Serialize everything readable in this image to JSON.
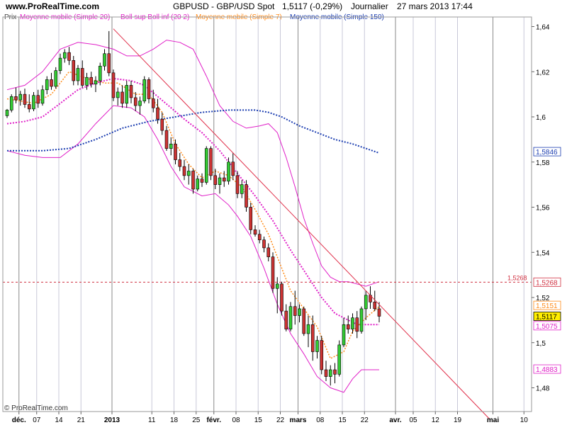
{
  "header": {
    "site": "www.ProRealTime.com",
    "instrument": "GBPUSD - GBP/USD Spot",
    "quote": "1,5117 (-0,29%)",
    "period": "Journalier",
    "datetime": "27 mars 2013 17:44"
  },
  "legend": {
    "prix": "Prix",
    "ma20": "Moyenne mobile (Simple 20)",
    "boll": "Boll sup Boll inf (20 2)",
    "ma7": "Moyenne mobile (Simple 7)",
    "ma150": "Moyenne mobile (Simple 150)"
  },
  "copyright": "© ProRealTime.com",
  "colors": {
    "background": "#ffffff",
    "up_candle": "#33cc33",
    "down_candle": "#cc3333",
    "wick": "#000000",
    "ma20": "#e020c8",
    "bollinger": "#e020c8",
    "ma7": "#ff8c1a",
    "ma150": "#1a3cb0",
    "trendline": "#e0304a",
    "hline": "#d03040",
    "month_line": "#8a8a8a",
    "week_line": "#c8c8d8",
    "price_badge": "#ffee00"
  },
  "chart_data": {
    "type": "candlestick",
    "title": "GBPUSD - GBP/USD Spot",
    "ylim": [
      1.467,
      1.648
    ],
    "yticks": [
      {
        "v": 1.48,
        "label": "1,48"
      },
      {
        "v": 1.5,
        "label": "1,5"
      },
      {
        "v": 1.52,
        "label": "1,52"
      },
      {
        "v": 1.54,
        "label": "1,54"
      },
      {
        "v": 1.56,
        "label": "1,56"
      },
      {
        "v": 1.58,
        "label": "1,58"
      },
      {
        "v": 1.6,
        "label": "1,6"
      },
      {
        "v": 1.62,
        "label": "1,62"
      },
      {
        "v": 1.64,
        "label": "1,64"
      }
    ],
    "xlabels": [
      {
        "label": "déc.",
        "type": "month",
        "i": 3
      },
      {
        "label": "07",
        "type": "week",
        "i": 7
      },
      {
        "label": "14",
        "type": "week",
        "i": 12
      },
      {
        "label": "21",
        "type": "week",
        "i": 17
      },
      {
        "label": "2013",
        "type": "year",
        "i": 24
      },
      {
        "label": "11",
        "type": "week",
        "i": 33
      },
      {
        "label": "18",
        "type": "week",
        "i": 38
      },
      {
        "label": "25",
        "type": "week",
        "i": 43
      },
      {
        "label": "févr.",
        "type": "month",
        "i": 47
      },
      {
        "label": "08",
        "type": "week",
        "i": 52
      },
      {
        "label": "15",
        "type": "week",
        "i": 57
      },
      {
        "label": "22",
        "type": "week",
        "i": 62
      },
      {
        "label": "mars",
        "type": "month",
        "i": 66
      },
      {
        "label": "08",
        "type": "week",
        "i": 71
      },
      {
        "label": "15",
        "type": "week",
        "i": 76
      },
      {
        "label": "22",
        "type": "week",
        "i": 81
      },
      {
        "label": "avr.",
        "type": "month",
        "i": 88
      },
      {
        "label": "05",
        "type": "week",
        "i": 92
      },
      {
        "label": "12",
        "type": "week",
        "i": 97
      },
      {
        "label": "19",
        "type": "week",
        "i": 102
      },
      {
        "label": "mai",
        "type": "month",
        "i": 110
      },
      {
        "label": "10",
        "type": "week",
        "i": 117
      }
    ],
    "candles": [
      [
        1.6005,
        1.6035,
        1.5995,
        1.603
      ],
      [
        1.603,
        1.61,
        1.602,
        1.609
      ],
      [
        1.609,
        1.613,
        1.606,
        1.6075
      ],
      [
        1.6075,
        1.6115,
        1.605,
        1.61
      ],
      [
        1.61,
        1.6125,
        1.604,
        1.6055
      ],
      [
        1.6055,
        1.61,
        1.602,
        1.6035
      ],
      [
        1.6035,
        1.611,
        1.6025,
        1.6095
      ],
      [
        1.6095,
        1.612,
        1.604,
        1.606
      ],
      [
        1.606,
        1.614,
        1.605,
        1.612
      ],
      [
        1.612,
        1.618,
        1.61,
        1.6165
      ],
      [
        1.6165,
        1.6195,
        1.612,
        1.6135
      ],
      [
        1.6135,
        1.622,
        1.6125,
        1.6205
      ],
      [
        1.6205,
        1.628,
        1.619,
        1.626
      ],
      [
        1.626,
        1.63,
        1.624,
        1.6285
      ],
      [
        1.6285,
        1.631,
        1.623,
        1.625
      ],
      [
        1.625,
        1.627,
        1.614,
        1.616
      ],
      [
        1.616,
        1.623,
        1.614,
        1.6215
      ],
      [
        1.6215,
        1.625,
        1.613,
        1.614
      ],
      [
        1.614,
        1.6195,
        1.612,
        1.6175
      ],
      [
        1.6175,
        1.62,
        1.613,
        1.6145
      ],
      [
        1.6145,
        1.618,
        1.611,
        1.616
      ],
      [
        1.616,
        1.624,
        1.614,
        1.6225
      ],
      [
        1.6225,
        1.63,
        1.6205,
        1.628
      ],
      [
        1.628,
        1.638,
        1.618,
        1.6195
      ],
      [
        1.6195,
        1.621,
        1.607,
        1.6085
      ],
      [
        1.6085,
        1.613,
        1.605,
        1.611
      ],
      [
        1.611,
        1.614,
        1.604,
        1.606
      ],
      [
        1.606,
        1.616,
        1.604,
        1.614
      ],
      [
        1.614,
        1.616,
        1.606,
        1.6085
      ],
      [
        1.6085,
        1.611,
        1.6025,
        1.605
      ],
      [
        1.605,
        1.609,
        1.601,
        1.607
      ],
      [
        1.607,
        1.618,
        1.606,
        1.6165
      ],
      [
        1.6165,
        1.6175,
        1.606,
        1.608
      ],
      [
        1.608,
        1.612,
        1.602,
        1.604
      ],
      [
        1.604,
        1.608,
        1.597,
        1.599
      ],
      [
        1.599,
        1.602,
        1.592,
        1.594
      ],
      [
        1.594,
        1.596,
        1.585,
        1.586
      ],
      [
        1.586,
        1.591,
        1.583,
        1.588
      ],
      [
        1.588,
        1.59,
        1.579,
        1.581
      ],
      [
        1.581,
        1.584,
        1.576,
        1.578
      ],
      [
        1.578,
        1.581,
        1.572,
        1.574
      ],
      [
        1.574,
        1.579,
        1.57,
        1.576
      ],
      [
        1.576,
        1.577,
        1.566,
        1.568
      ],
      [
        1.568,
        1.574,
        1.567,
        1.5725
      ],
      [
        1.5725,
        1.575,
        1.569,
        1.571
      ],
      [
        1.571,
        1.587,
        1.57,
        1.586
      ],
      [
        1.586,
        1.587,
        1.572,
        1.574
      ],
      [
        1.574,
        1.577,
        1.568,
        1.57
      ],
      [
        1.57,
        1.575,
        1.566,
        1.573
      ],
      [
        1.573,
        1.576,
        1.569,
        1.5715
      ],
      [
        1.5715,
        1.582,
        1.57,
        1.58
      ],
      [
        1.58,
        1.584,
        1.572,
        1.574
      ],
      [
        1.574,
        1.576,
        1.564,
        1.566
      ],
      [
        1.566,
        1.572,
        1.564,
        1.57
      ],
      [
        1.57,
        1.572,
        1.558,
        1.56
      ],
      [
        1.56,
        1.562,
        1.548,
        1.55
      ],
      [
        1.55,
        1.552,
        1.547,
        1.548
      ],
      [
        1.548,
        1.55,
        1.544,
        1.5455
      ],
      [
        1.5455,
        1.547,
        1.54,
        1.542
      ],
      [
        1.542,
        1.544,
        1.536,
        1.538
      ],
      [
        1.538,
        1.54,
        1.522,
        1.524
      ],
      [
        1.524,
        1.529,
        1.513,
        1.526
      ],
      [
        1.526,
        1.527,
        1.512,
        1.514
      ],
      [
        1.514,
        1.517,
        1.505,
        1.506
      ],
      [
        1.506,
        1.518,
        1.505,
        1.516
      ],
      [
        1.516,
        1.523,
        1.508,
        1.512
      ],
      [
        1.512,
        1.517,
        1.509,
        1.515
      ],
      [
        1.515,
        1.516,
        1.503,
        1.504
      ],
      [
        1.504,
        1.512,
        1.498,
        1.508
      ],
      [
        1.508,
        1.512,
        1.492,
        1.496
      ],
      [
        1.496,
        1.503,
        1.493,
        1.501
      ],
      [
        1.501,
        1.503,
        1.486,
        1.488
      ],
      [
        1.488,
        1.492,
        1.483,
        1.485
      ],
      [
        1.485,
        1.49,
        1.481,
        1.488
      ],
      [
        1.488,
        1.491,
        1.482,
        1.486
      ],
      [
        1.486,
        1.501,
        1.485,
        1.499
      ],
      [
        1.499,
        1.511,
        1.498,
        1.508
      ],
      [
        1.508,
        1.512,
        1.504,
        1.506
      ],
      [
        1.506,
        1.513,
        1.504,
        1.511
      ],
      [
        1.511,
        1.514,
        1.502,
        1.505
      ],
      [
        1.505,
        1.516,
        1.504,
        1.515
      ],
      [
        1.515,
        1.523,
        1.51,
        1.521
      ],
      [
        1.521,
        1.525,
        1.515,
        1.518
      ],
      [
        1.518,
        1.523,
        1.514,
        1.515
      ],
      [
        1.515,
        1.518,
        1.509,
        1.5117
      ]
    ],
    "ma7": [
      [
        0,
        1.608
      ],
      [
        6,
        1.606
      ],
      [
        10,
        1.61
      ],
      [
        14,
        1.62
      ],
      [
        18,
        1.617
      ],
      [
        22,
        1.615
      ],
      [
        25,
        1.615
      ],
      [
        29,
        1.61
      ],
      [
        32,
        1.61
      ],
      [
        35,
        1.602
      ],
      [
        38,
        1.588
      ],
      [
        41,
        1.579
      ],
      [
        44,
        1.573
      ],
      [
        47,
        1.576
      ],
      [
        50,
        1.574
      ],
      [
        53,
        1.569
      ],
      [
        56,
        1.559
      ],
      [
        59,
        1.548
      ],
      [
        62,
        1.533
      ],
      [
        64,
        1.523
      ],
      [
        67,
        1.515
      ],
      [
        70,
        1.507
      ],
      [
        73,
        1.493
      ],
      [
        76,
        1.496
      ],
      [
        78,
        1.505
      ],
      [
        81,
        1.511
      ],
      [
        84,
        1.516
      ]
    ],
    "ma20": [
      [
        0,
        1.597
      ],
      [
        4,
        1.598
      ],
      [
        8,
        1.6
      ],
      [
        12,
        1.606
      ],
      [
        16,
        1.612
      ],
      [
        20,
        1.615
      ],
      [
        24,
        1.617
      ],
      [
        28,
        1.616
      ],
      [
        31,
        1.614
      ],
      [
        34,
        1.609
      ],
      [
        37,
        1.604
      ],
      [
        40,
        1.599
      ],
      [
        44,
        1.593
      ],
      [
        48,
        1.585
      ],
      [
        52,
        1.575
      ],
      [
        56,
        1.565
      ],
      [
        60,
        1.554
      ],
      [
        64,
        1.541
      ],
      [
        68,
        1.529
      ],
      [
        71,
        1.52
      ],
      [
        74,
        1.513
      ],
      [
        77,
        1.51
      ],
      [
        79,
        1.508
      ],
      [
        84,
        1.508
      ]
    ],
    "boll_upper": [
      [
        0,
        1.612
      ],
      [
        4,
        1.614
      ],
      [
        8,
        1.62
      ],
      [
        12,
        1.63
      ],
      [
        16,
        1.633
      ],
      [
        20,
        1.632
      ],
      [
        24,
        1.63
      ],
      [
        27,
        1.627
      ],
      [
        30,
        1.627
      ],
      [
        33,
        1.63
      ],
      [
        36,
        1.634
      ],
      [
        39,
        1.633
      ],
      [
        42,
        1.63
      ],
      [
        45,
        1.618
      ],
      [
        48,
        1.605
      ],
      [
        51,
        1.598
      ],
      [
        54,
        1.595
      ],
      [
        57,
        1.596
      ],
      [
        59,
        1.597
      ],
      [
        61,
        1.593
      ],
      [
        63,
        1.582
      ],
      [
        65,
        1.569
      ],
      [
        67,
        1.555
      ],
      [
        69,
        1.544
      ],
      [
        71,
        1.534
      ],
      [
        73,
        1.529
      ],
      [
        75,
        1.527
      ],
      [
        77,
        1.527
      ],
      [
        79,
        1.526
      ],
      [
        81,
        1.525
      ],
      [
        84,
        1.527
      ]
    ],
    "boll_lower": [
      [
        0,
        1.585
      ],
      [
        4,
        1.583
      ],
      [
        8,
        1.582
      ],
      [
        12,
        1.582
      ],
      [
        16,
        1.588
      ],
      [
        20,
        1.597
      ],
      [
        24,
        1.605
      ],
      [
        28,
        1.604
      ],
      [
        31,
        1.6
      ],
      [
        34,
        1.59
      ],
      [
        37,
        1.578
      ],
      [
        40,
        1.569
      ],
      [
        44,
        1.565
      ],
      [
        47,
        1.566
      ],
      [
        50,
        1.561
      ],
      [
        52,
        1.556
      ],
      [
        55,
        1.547
      ],
      [
        58,
        1.533
      ],
      [
        61,
        1.517
      ],
      [
        64,
        1.504
      ],
      [
        67,
        1.495
      ],
      [
        70,
        1.485
      ],
      [
        73,
        1.48
      ],
      [
        76,
        1.478
      ],
      [
        78,
        1.484
      ],
      [
        80,
        1.488
      ],
      [
        84,
        1.488
      ]
    ],
    "ma150": [
      [
        0,
        1.585
      ],
      [
        8,
        1.585
      ],
      [
        14,
        1.586
      ],
      [
        20,
        1.59
      ],
      [
        26,
        1.595
      ],
      [
        32,
        1.598
      ],
      [
        38,
        1.6
      ],
      [
        44,
        1.602
      ],
      [
        50,
        1.603
      ],
      [
        56,
        1.603
      ],
      [
        59,
        1.602
      ],
      [
        62,
        1.6
      ],
      [
        66,
        1.596
      ],
      [
        70,
        1.593
      ],
      [
        74,
        1.59
      ],
      [
        78,
        1.588
      ],
      [
        81,
        1.586
      ],
      [
        84,
        1.584
      ]
    ],
    "trendline": {
      "from": [
        24,
        1.639
      ],
      "to": [
        109,
        1.466
      ]
    },
    "resistance_line": {
      "value": 1.5268,
      "label": "1,5268"
    },
    "right_axis_badges": [
      {
        "label": "1,5846",
        "value": 1.5846,
        "color": "#1a3cb0",
        "bg": "#ffffff"
      },
      {
        "label": "1,5268",
        "value": 1.5268,
        "color": "#d03040",
        "bg": "#ffffff"
      },
      {
        "label": "1,5151",
        "value": 1.5165,
        "color": "#ff8c1a",
        "bg": "#ffffff"
      },
      {
        "label": "1,5117",
        "value": 1.5117,
        "color": "#000000",
        "bg": "#ffee00"
      },
      {
        "label": "1,5075",
        "value": 1.5075,
        "color": "#e020c8",
        "bg": "#ffffff"
      },
      {
        "label": "1,4883",
        "value": 1.4883,
        "color": "#e020c8",
        "bg": "#ffffff"
      }
    ]
  }
}
